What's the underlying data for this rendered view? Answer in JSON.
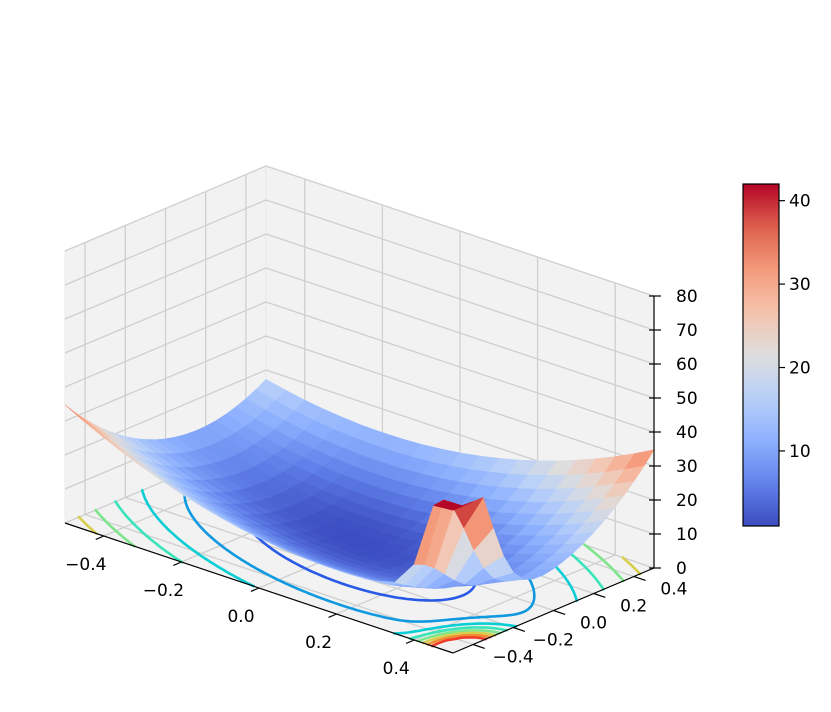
{
  "chart_data": {
    "type": "surface",
    "title": "",
    "xlabel": "",
    "ylabel": "",
    "zlabel": "",
    "x": [
      -0.5,
      -0.45,
      -0.4,
      -0.35,
      -0.3,
      -0.25,
      -0.2,
      -0.15,
      -0.1,
      -0.05,
      0.0,
      0.05,
      0.1,
      0.15,
      0.2,
      0.25,
      0.3,
      0.35,
      0.4,
      0.45,
      0.5
    ],
    "y": [
      -0.5,
      -0.45,
      -0.4,
      -0.35,
      -0.3,
      -0.25,
      -0.2,
      -0.15,
      -0.1,
      -0.05,
      0.0,
      0.05,
      0.1,
      0.15,
      0.2,
      0.25,
      0.3,
      0.35,
      0.4,
      0.45,
      0.5
    ],
    "surface_model": "z ≈ 45·x² + 55·y² + 35·x·y with a sharp rise toward the corner (x=0.5, y=-0.5); z min ≈ 1, z max ≈ 42",
    "z_min": 1,
    "z_max": 42,
    "xlim": [
      -0.5,
      0.5
    ],
    "ylim": [
      -0.5,
      0.5
    ],
    "zlim": [
      0,
      80
    ],
    "x_ticks": [
      "−0.4",
      "−0.2",
      "0.0",
      "0.2",
      "0.4"
    ],
    "y_ticks": [
      "−0.4",
      "−0.2",
      "0.0",
      "0.2",
      "0.4"
    ],
    "z_ticks": [
      "0",
      "10",
      "20",
      "30",
      "40",
      "50",
      "60",
      "70",
      "80"
    ],
    "colormap": "coolwarm",
    "colorbar": {
      "ticks": [
        "10",
        "20",
        "30",
        "40"
      ],
      "range": [
        1,
        42
      ]
    },
    "contour_offset_z": 0,
    "contour_levels": [
      5,
      10,
      15,
      20,
      25,
      30,
      35,
      40
    ],
    "grid": true,
    "legend": false
  }
}
